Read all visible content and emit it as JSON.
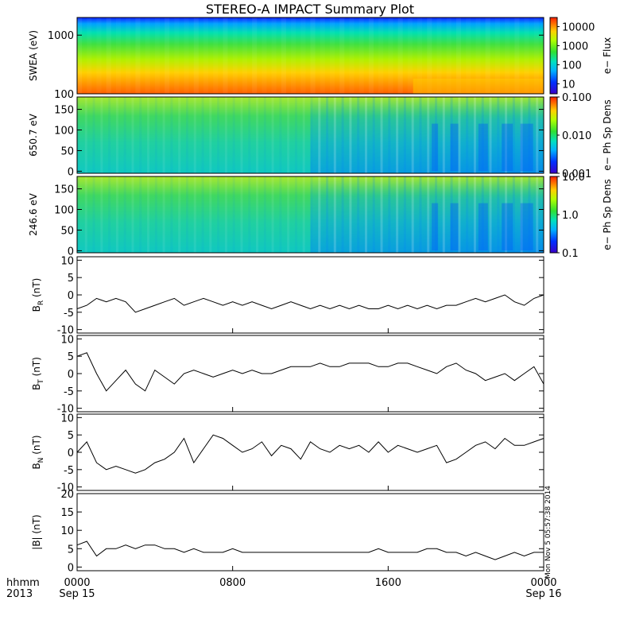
{
  "chart_data": {
    "type": "multi-panel time series with spectrograms",
    "title": "STEREO-A IMPACT Summary Plot",
    "x_axis": {
      "label_line1": "hhmm",
      "label_line2": "2013",
      "range": [
        "2013-09-15 00:00",
        "2013-09-16 00:00"
      ],
      "ticks": [
        {
          "hour": 0,
          "line1": "0000",
          "line2": "Sep 15"
        },
        {
          "hour": 8,
          "line1": "0800",
          "line2": ""
        },
        {
          "hour": 16,
          "line1": "1600",
          "line2": ""
        },
        {
          "hour": 24,
          "line1": "0000",
          "line2": "Sep 16"
        }
      ]
    },
    "spectrograms": [
      {
        "name": "swea",
        "ylabel": "SWEA (eV)",
        "yscale": "log",
        "ylim": [
          100,
          2000
        ],
        "yticks": [
          {
            "v": 100,
            "label": "100"
          },
          {
            "v": 1000,
            "label": "1000"
          }
        ],
        "colorbar_label": "e− Flux",
        "colorbar_scale": "log",
        "colorbar_range": [
          3,
          30000
        ],
        "colorbar_ticks": [
          {
            "v": 10,
            "label": "10"
          },
          {
            "v": 100,
            "label": "100"
          },
          {
            "v": 1000,
            "label": "1000"
          },
          {
            "v": 10000,
            "label": "10000"
          }
        ]
      },
      {
        "name": "pad650",
        "ylabel": "650.7 eV",
        "yscale": "linear",
        "ylim": [
          -5,
          180
        ],
        "yticks": [
          {
            "v": 0,
            "label": "0"
          },
          {
            "v": 50,
            "label": "50"
          },
          {
            "v": 100,
            "label": "100"
          },
          {
            "v": 150,
            "label": "150"
          }
        ],
        "colorbar_label": "e− Ph Sp Dens",
        "colorbar_scale": "log",
        "colorbar_range": [
          0.001,
          0.1
        ],
        "colorbar_ticks": [
          {
            "v": 0.001,
            "label": "0.001"
          },
          {
            "v": 0.01,
            "label": "0.010"
          },
          {
            "v": 0.1,
            "label": "0.100"
          }
        ]
      },
      {
        "name": "pad246",
        "ylabel": "246.6 eV",
        "yscale": "linear",
        "ylim": [
          -5,
          180
        ],
        "yticks": [
          {
            "v": 0,
            "label": "0"
          },
          {
            "v": 50,
            "label": "50"
          },
          {
            "v": 100,
            "label": "100"
          },
          {
            "v": 150,
            "label": "150"
          }
        ],
        "colorbar_label": "e− Ph Sp Dens",
        "colorbar_scale": "log",
        "colorbar_range": [
          0.1,
          10
        ],
        "colorbar_ticks": [
          {
            "v": 0.1,
            "label": "0.1"
          },
          {
            "v": 1,
            "label": "1.0"
          },
          {
            "v": 10,
            "label": "10.0"
          }
        ]
      }
    ],
    "line_panels": [
      {
        "name": "BR",
        "ylabel_main": "B",
        "ylabel_sub": "R",
        "ylabel_unit": " (nT)",
        "ylim": [
          -11,
          11
        ],
        "yticks": [
          -10,
          -5,
          0,
          5,
          10
        ],
        "series": {
          "x_hours": [
            0,
            0.5,
            1,
            1.5,
            2,
            2.5,
            3,
            3.5,
            4,
            4.5,
            5,
            5.5,
            6,
            6.5,
            7,
            7.5,
            8,
            8.5,
            9,
            9.5,
            10,
            10.5,
            11,
            11.5,
            12,
            12.5,
            13,
            13.5,
            14,
            14.5,
            15,
            15.5,
            16,
            16.5,
            17,
            17.5,
            18,
            18.5,
            19,
            19.5,
            20,
            20.5,
            21,
            21.5,
            22,
            22.5,
            23,
            23.5,
            24
          ],
          "values": [
            -4,
            -3,
            -1,
            -2,
            -1,
            -2,
            -5,
            -4,
            -3,
            -2,
            -1,
            -3,
            -2,
            -1,
            -2,
            -3,
            -2,
            -3,
            -2,
            -3,
            -4,
            -3,
            -2,
            -3,
            -4,
            -3,
            -4,
            -3,
            -4,
            -3,
            -4,
            -4,
            -3,
            -4,
            -3,
            -4,
            -3,
            -4,
            -3,
            -3,
            -2,
            -1,
            -2,
            -1,
            0,
            -2,
            -3,
            -1,
            0
          ]
        }
      },
      {
        "name": "BT",
        "ylabel_main": "B",
        "ylabel_sub": "T",
        "ylabel_unit": " (nT)",
        "ylim": [
          -11,
          11
        ],
        "yticks": [
          -10,
          -5,
          0,
          5,
          10
        ],
        "series": {
          "x_hours": [
            0,
            0.5,
            1,
            1.5,
            2,
            2.5,
            3,
            3.5,
            4,
            4.5,
            5,
            5.5,
            6,
            6.5,
            7,
            7.5,
            8,
            8.5,
            9,
            9.5,
            10,
            10.5,
            11,
            11.5,
            12,
            12.5,
            13,
            13.5,
            14,
            14.5,
            15,
            15.5,
            16,
            16.5,
            17,
            17.5,
            18,
            18.5,
            19,
            19.5,
            20,
            20.5,
            21,
            21.5,
            22,
            22.5,
            23,
            23.5,
            24
          ],
          "values": [
            5,
            6,
            0,
            -5,
            -2,
            1,
            -3,
            -5,
            1,
            -1,
            -3,
            0,
            1,
            0,
            -1,
            0,
            1,
            0,
            1,
            0,
            0,
            1,
            2,
            2,
            2,
            3,
            2,
            2,
            3,
            3,
            3,
            2,
            2,
            3,
            3,
            2,
            1,
            0,
            2,
            3,
            1,
            0,
            -2,
            -1,
            0,
            -2,
            0,
            2,
            -3
          ]
        }
      },
      {
        "name": "BN",
        "ylabel_main": "B",
        "ylabel_sub": "N",
        "ylabel_unit": " (nT)",
        "ylim": [
          -11,
          11
        ],
        "yticks": [
          -10,
          -5,
          0,
          5,
          10
        ],
        "series": {
          "x_hours": [
            0,
            0.5,
            1,
            1.5,
            2,
            2.5,
            3,
            3.5,
            4,
            4.5,
            5,
            5.5,
            6,
            6.5,
            7,
            7.5,
            8,
            8.5,
            9,
            9.5,
            10,
            10.5,
            11,
            11.5,
            12,
            12.5,
            13,
            13.5,
            14,
            14.5,
            15,
            15.5,
            16,
            16.5,
            17,
            17.5,
            18,
            18.5,
            19,
            19.5,
            20,
            20.5,
            21,
            21.5,
            22,
            22.5,
            23,
            23.5,
            24
          ],
          "values": [
            0,
            3,
            -3,
            -5,
            -4,
            -5,
            -6,
            -5,
            -3,
            -2,
            0,
            4,
            -3,
            1,
            5,
            4,
            2,
            0,
            1,
            3,
            -1,
            2,
            1,
            -2,
            3,
            1,
            0,
            2,
            1,
            2,
            0,
            3,
            0,
            2,
            1,
            0,
            1,
            2,
            -3,
            -2,
            0,
            2,
            3,
            1,
            4,
            2,
            2,
            3,
            4
          ]
        }
      },
      {
        "name": "Btot",
        "ylabel_main": "|B|",
        "ylabel_sub": "",
        "ylabel_unit": " (nT)",
        "ylim": [
          -1,
          20
        ],
        "yticks": [
          0,
          5,
          10,
          15,
          20
        ],
        "series": {
          "x_hours": [
            0,
            0.5,
            1,
            1.5,
            2,
            2.5,
            3,
            3.5,
            4,
            4.5,
            5,
            5.5,
            6,
            6.5,
            7,
            7.5,
            8,
            8.5,
            9,
            9.5,
            10,
            10.5,
            11,
            11.5,
            12,
            12.5,
            13,
            13.5,
            14,
            14.5,
            15,
            15.5,
            16,
            16.5,
            17,
            17.5,
            18,
            18.5,
            19,
            19.5,
            20,
            20.5,
            21,
            21.5,
            22,
            22.5,
            23,
            23.5,
            24
          ],
          "values": [
            6,
            7,
            3,
            5,
            5,
            6,
            5,
            6,
            6,
            5,
            5,
            4,
            5,
            4,
            4,
            4,
            5,
            4,
            4,
            4,
            4,
            4,
            4,
            4,
            4,
            4,
            4,
            4,
            4,
            4,
            4,
            5,
            4,
            4,
            4,
            4,
            5,
            5,
            4,
            4,
            3,
            4,
            3,
            2,
            3,
            4,
            3,
            4,
            4
          ]
        }
      }
    ],
    "timestamp_text": "Mon Nov 5 05:57:38 2014"
  }
}
